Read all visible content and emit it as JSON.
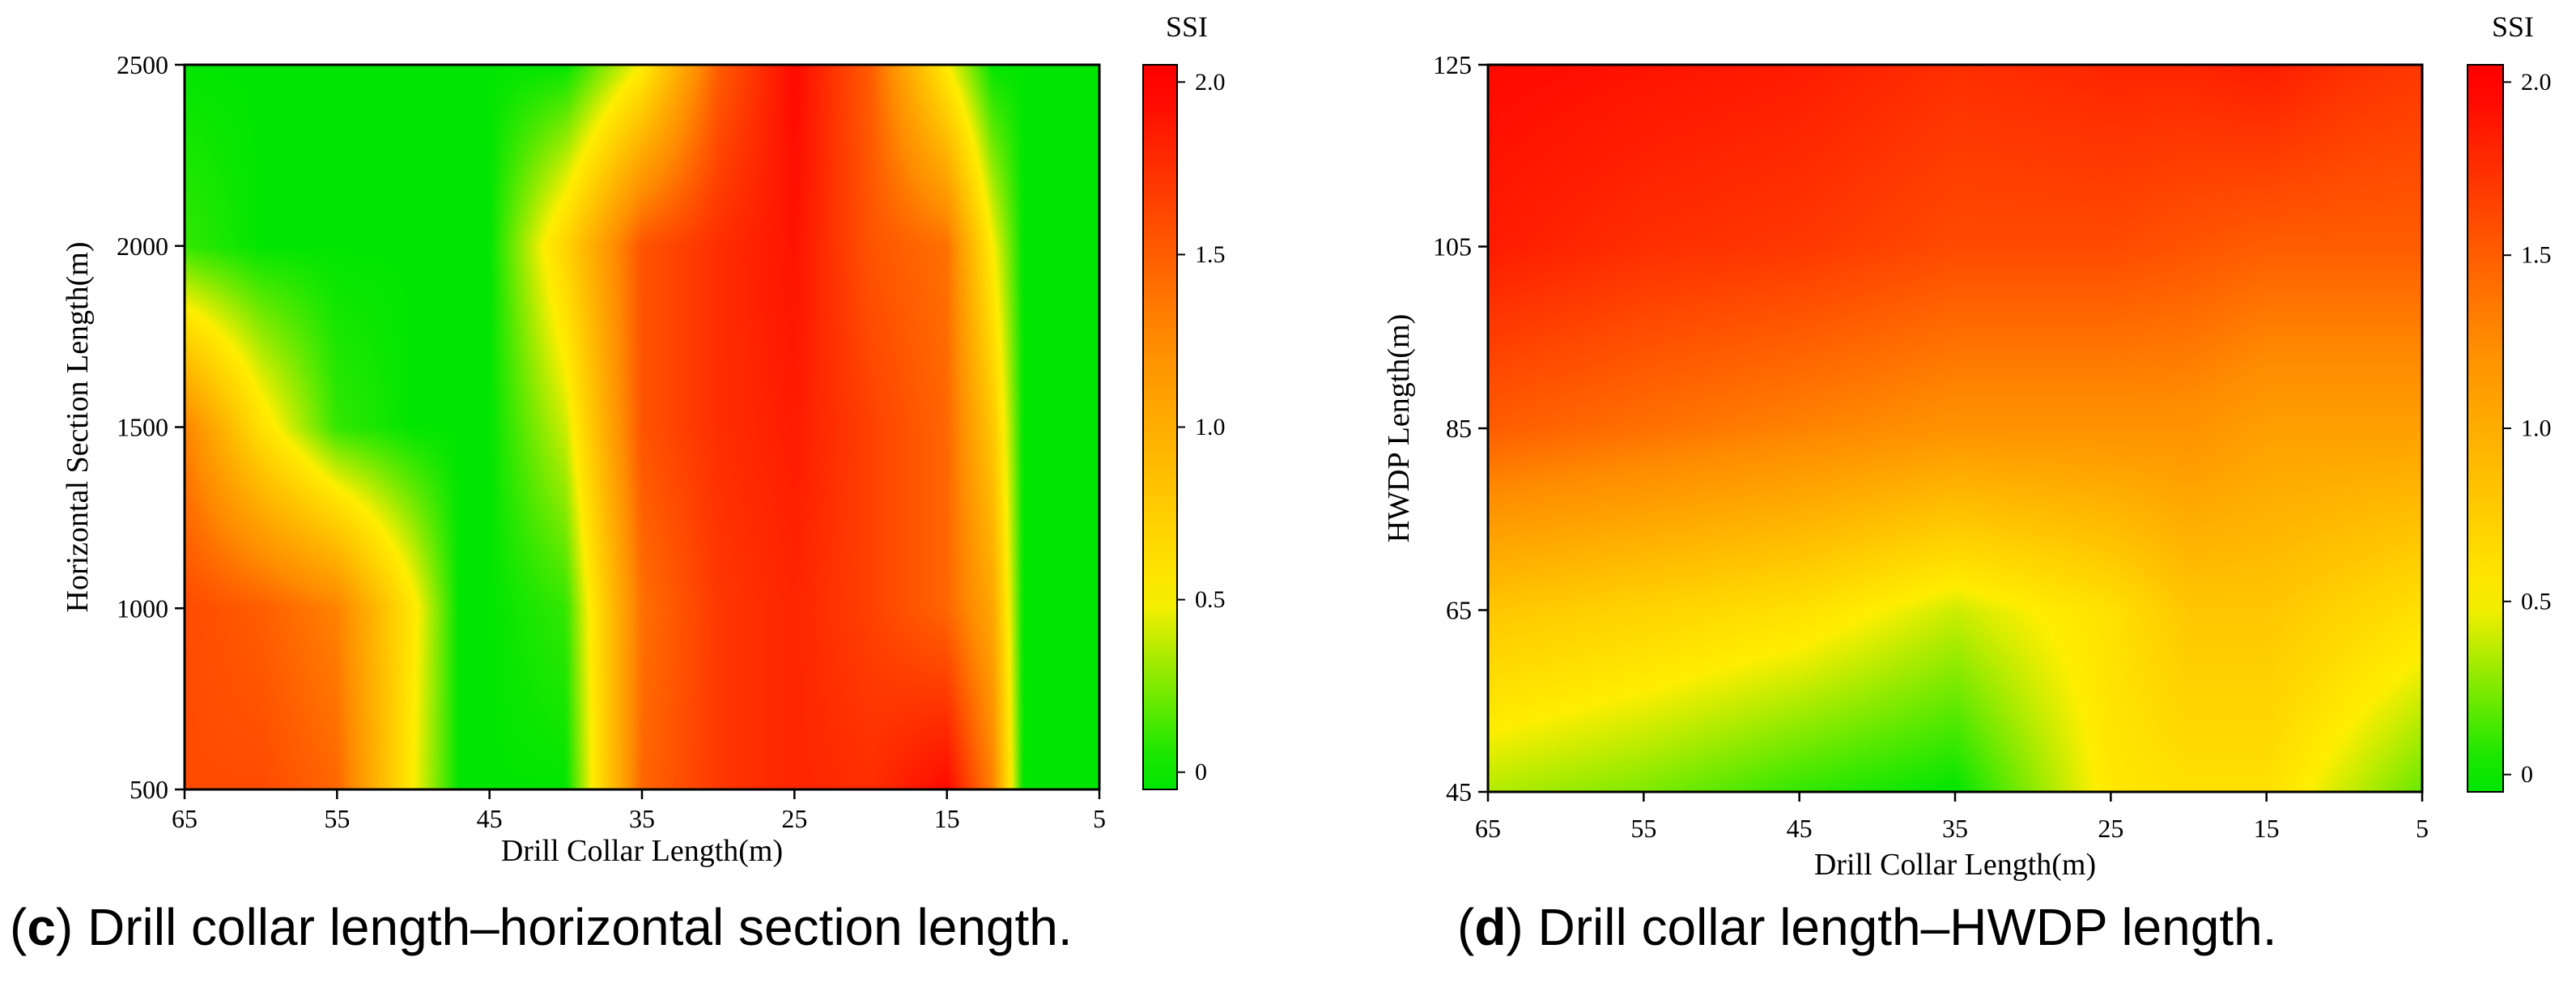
{
  "colors": {
    "low": "#00e600",
    "mid": "#ffee00",
    "orange": "#ff8c00",
    "high": "#ff0000"
  },
  "chart_data": [
    {
      "type": "heatmap",
      "title": "",
      "caption_letter": "c",
      "caption_text": " Drill collar length–horizontal section length.",
      "caption_open": "(",
      "caption_close": ")",
      "xlabel": "Drill Collar Length(m)",
      "ylabel": "Horizontal Section Length(m)",
      "x": [
        65,
        55,
        45,
        35,
        25,
        15,
        5
      ],
      "y": [
        500,
        1000,
        1500,
        2000,
        2500
      ],
      "xlim": [
        65,
        5
      ],
      "ylim": [
        500,
        2500
      ],
      "x_tick_labels": [
        "65",
        "55",
        "45",
        "35",
        "25",
        "15",
        "5"
      ],
      "y_tick_labels": [
        "500",
        "1000",
        "1500",
        "2000",
        "2500"
      ],
      "z_columns_x": [
        65,
        60,
        55,
        50,
        47,
        45,
        40,
        35,
        30,
        25,
        20,
        15,
        12,
        10,
        5
      ],
      "z": [
        [
          1.6,
          1.6,
          1.45,
          0.5,
          0.0,
          0.0,
          0.0,
          1.45,
          1.7,
          1.8,
          1.75,
          1.95,
          1.3,
          0.0,
          0.0
        ],
        [
          1.6,
          1.5,
          1.3,
          0.55,
          0.0,
          0.0,
          0.1,
          1.4,
          1.7,
          1.8,
          1.65,
          1.45,
          1.05,
          0.0,
          0.0
        ],
        [
          1.3,
          0.6,
          0.1,
          0.0,
          0.0,
          0.0,
          0.4,
          1.55,
          1.75,
          1.85,
          1.65,
          1.45,
          0.8,
          0.0,
          0.0
        ],
        [
          0.1,
          0.0,
          0.0,
          0.0,
          0.0,
          0.0,
          0.7,
          1.55,
          1.75,
          1.9,
          1.55,
          1.4,
          0.5,
          0.0,
          0.0
        ],
        [
          0.0,
          0.0,
          0.0,
          0.0,
          0.0,
          0.0,
          0.0,
          0.5,
          1.5,
          1.95,
          1.5,
          0.5,
          0.0,
          0.0,
          0.0
        ]
      ],
      "colorbar": {
        "title": "SSI",
        "ticks": [
          "0",
          "0.5",
          "1.0",
          "1.5",
          "2.0"
        ],
        "range": [
          -0.05,
          2.05
        ]
      }
    },
    {
      "type": "heatmap",
      "title": "",
      "caption_letter": "d",
      "caption_text": " Drill collar length–HWDP length.",
      "caption_open": "(",
      "caption_close": ")",
      "xlabel": "Drill Collar Length(m)",
      "ylabel": "HWDP Length(m)",
      "x": [
        65,
        55,
        45,
        35,
        25,
        15,
        5
      ],
      "y": [
        45,
        65,
        85,
        105,
        125
      ],
      "xlim": [
        65,
        5
      ],
      "ylim": [
        45,
        125
      ],
      "x_tick_labels": [
        "65",
        "55",
        "45",
        "35",
        "25",
        "15",
        "5"
      ],
      "y_tick_labels": [
        "45",
        "65",
        "85",
        "105",
        "125"
      ],
      "z_columns_x": [
        65,
        55,
        45,
        35,
        25,
        20,
        15,
        10,
        5
      ],
      "z": [
        [
          0.35,
          0.25,
          0.1,
          0.0,
          0.55,
          0.6,
          0.6,
          0.4,
          0.2
        ],
        [
          0.8,
          0.7,
          0.6,
          0.4,
          0.6,
          0.8,
          0.8,
          0.7,
          0.6
        ],
        [
          1.5,
          1.4,
          1.3,
          1.2,
          1.2,
          1.2,
          1.1,
          1.1,
          1.1
        ],
        [
          1.85,
          1.75,
          1.7,
          1.6,
          1.6,
          1.55,
          1.5,
          1.5,
          1.5
        ],
        [
          1.95,
          1.9,
          1.85,
          1.75,
          1.8,
          1.8,
          1.85,
          1.75,
          1.7
        ]
      ],
      "colorbar": {
        "title": "SSI",
        "ticks": [
          "0",
          "0.5",
          "1.0",
          "1.5",
          "2.0"
        ],
        "range": [
          -0.05,
          2.05
        ]
      }
    }
  ]
}
